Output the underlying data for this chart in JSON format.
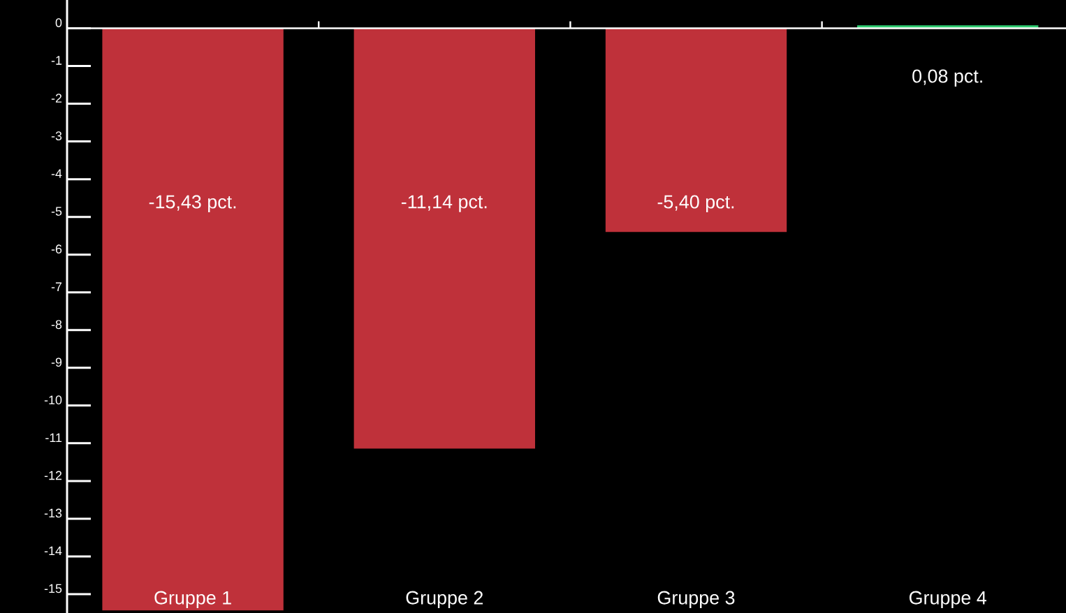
{
  "chart_data": {
    "type": "bar",
    "categories": [
      "Gruppe 1",
      "Gruppe 2",
      "Gruppe 3",
      "Gruppe 4"
    ],
    "values": [
      -15.43,
      -11.14,
      -5.4,
      0.08
    ],
    "colors": [
      "#bf313a",
      "#bf313a",
      "#bf313a",
      "#2ecc71"
    ],
    "value_labels": [
      "-15,43 pct.",
      "-11,14 pct.",
      "-5,40 pct.",
      "0,08 pct."
    ],
    "ylim": [
      -15.5,
      0.75
    ],
    "yticks": [
      0,
      -1,
      -2,
      -3,
      -4,
      -5,
      -6,
      -7,
      -8,
      -9,
      -10,
      -11,
      -12,
      -13,
      -14,
      -15
    ]
  }
}
